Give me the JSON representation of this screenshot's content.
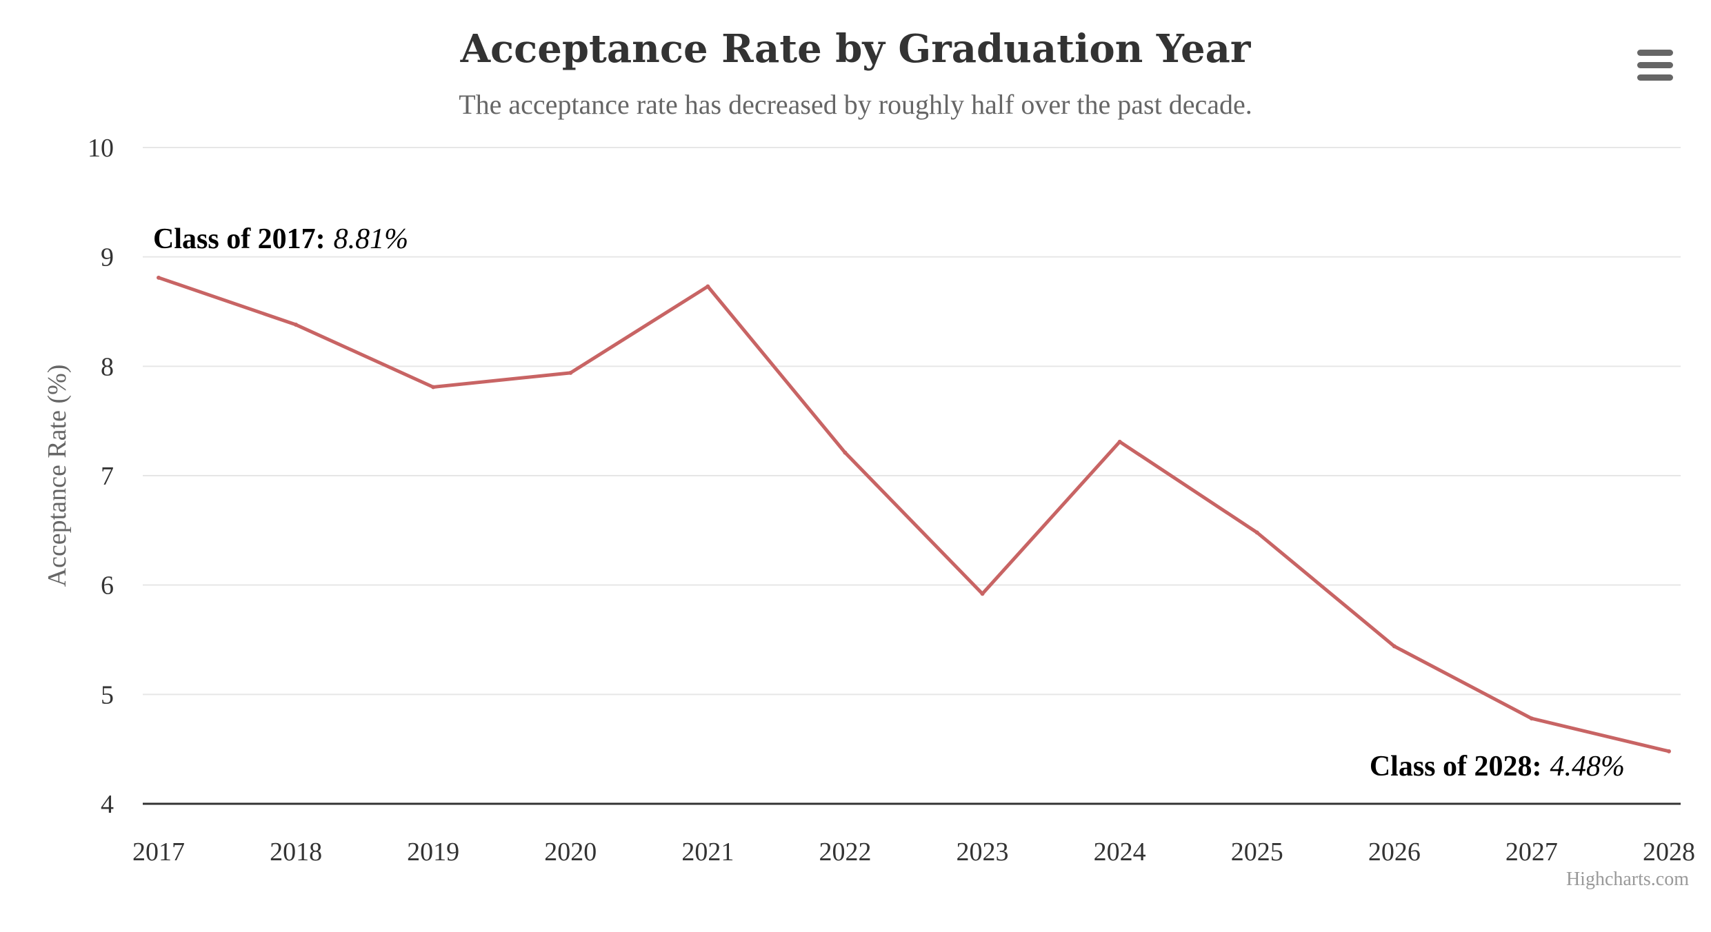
{
  "chart_data": {
    "type": "line",
    "title": "Acceptance Rate by Graduation Year",
    "subtitle": "The acceptance rate has decreased by roughly half over the past decade.",
    "ylabel": "Acceptance Rate (%)",
    "xlabel": "",
    "categories": [
      "2017",
      "2018",
      "2019",
      "2020",
      "2021",
      "2022",
      "2023",
      "2024",
      "2025",
      "2026",
      "2027",
      "2028"
    ],
    "series": [
      {
        "values": [
          8.81,
          8.38,
          7.81,
          7.94,
          8.73,
          7.21,
          5.92,
          7.31,
          6.48,
          5.44,
          4.78,
          4.48
        ],
        "color": "#c86464"
      }
    ],
    "ylim": [
      4,
      10
    ],
    "yticks": [
      "4",
      "5",
      "6",
      "7",
      "8",
      "9",
      "10"
    ],
    "grid": true,
    "legend": "none",
    "annotations": [
      {
        "label": "Class of 2017:",
        "value": "8.81%"
      },
      {
        "label": "Class of 2028:",
        "value": "4.48%"
      }
    ]
  },
  "ui": {
    "menu_icon": "hamburger-menu-icon",
    "credits": "Highcharts.com"
  }
}
